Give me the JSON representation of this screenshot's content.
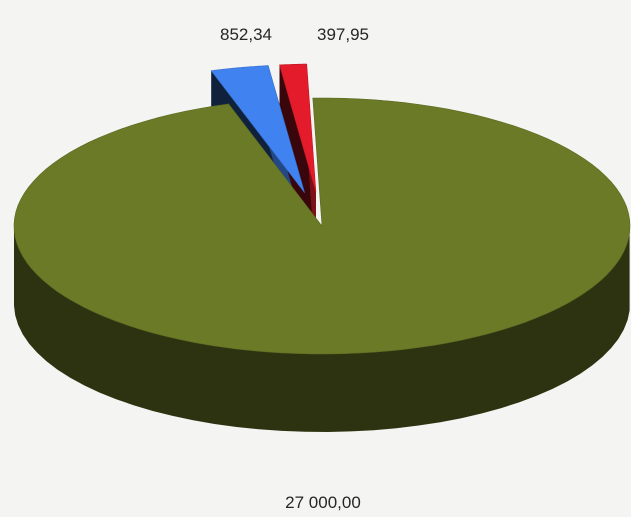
{
  "chart_data": {
    "type": "pie",
    "style": "3d-exploded",
    "title": "",
    "slices": [
      {
        "label_text": "27 000,00",
        "value": 27000.0,
        "color": "#6b7a26"
      },
      {
        "label_text": "852,34",
        "value": 852.34,
        "color": "#3f82f0"
      },
      {
        "label_text": "397,95",
        "value": 397.95,
        "color": "#e31b2a"
      }
    ],
    "legend": "none",
    "grid": false
  }
}
